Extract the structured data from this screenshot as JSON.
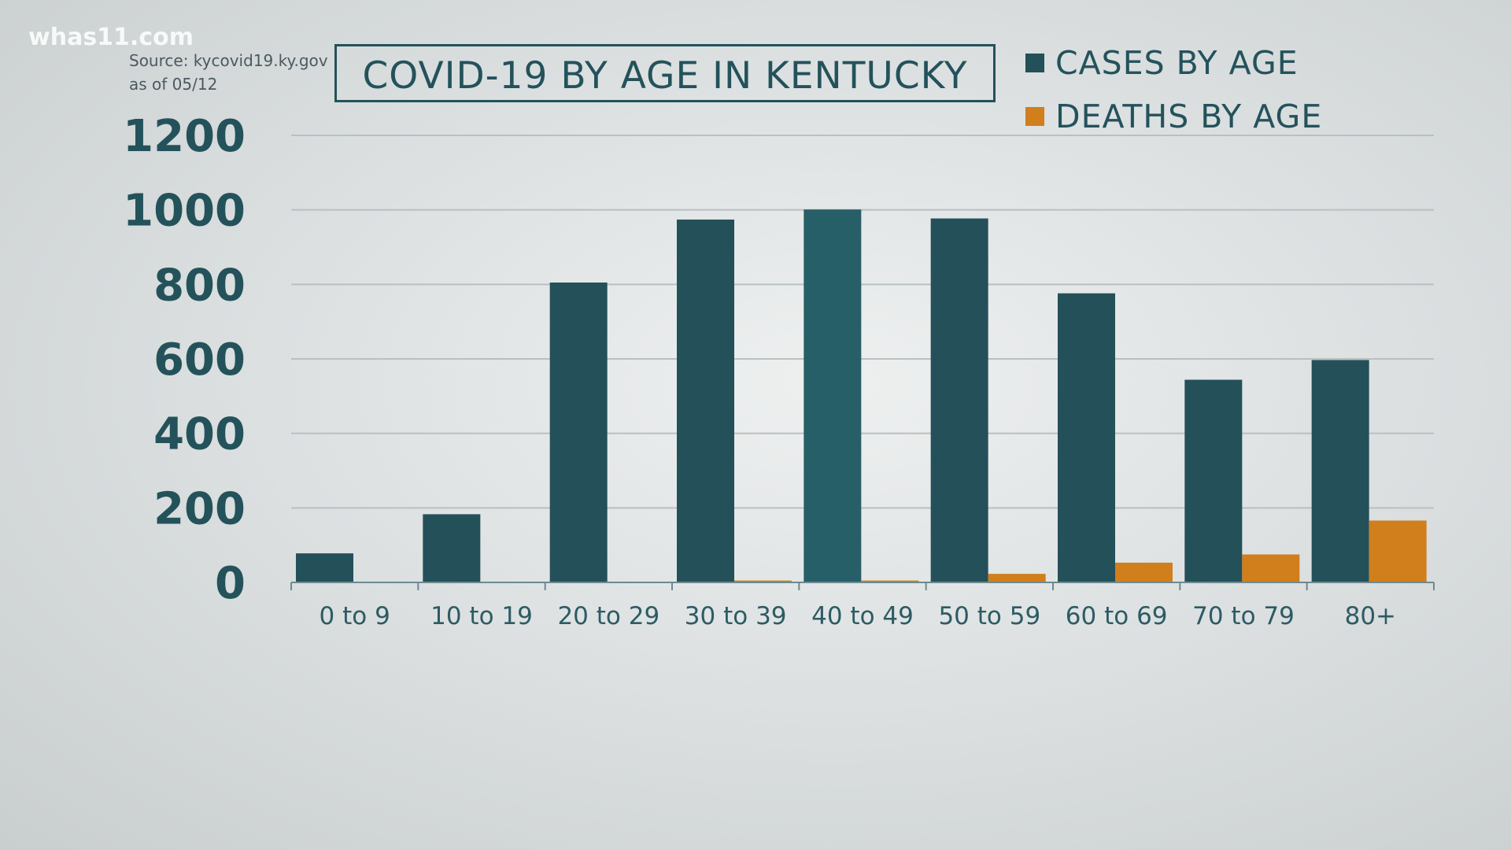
{
  "watermark": "whas11.com",
  "source": {
    "line1": "Source: kycovid19.ky.gov",
    "line2": "as of 05/12"
  },
  "chart_data": {
    "type": "bar",
    "title": "COVID-19 BY AGE IN KENTUCKY",
    "categories": [
      "0 to 9",
      "10 to 19",
      "20 to 29",
      "30 to 39",
      "40 to 49",
      "50 to 59",
      "60 to 69",
      "70 to 79",
      "80+"
    ],
    "series": [
      {
        "name": "CASES BY AGE",
        "color": "#245059",
        "values": [
          78,
          183,
          805,
          974,
          1001,
          977,
          776,
          544,
          597
        ]
      },
      {
        "name": "DEATHS BY AGE",
        "color": "#d07f1c",
        "values": [
          0,
          0,
          0,
          5,
          5,
          23,
          53,
          75,
          166
        ]
      }
    ],
    "yticks": [
      0,
      200,
      400,
      600,
      800,
      1000,
      1200
    ],
    "ylim": [
      0,
      1200
    ],
    "grid": true,
    "legend": "top-right",
    "xlabel": "",
    "ylabel": ""
  }
}
